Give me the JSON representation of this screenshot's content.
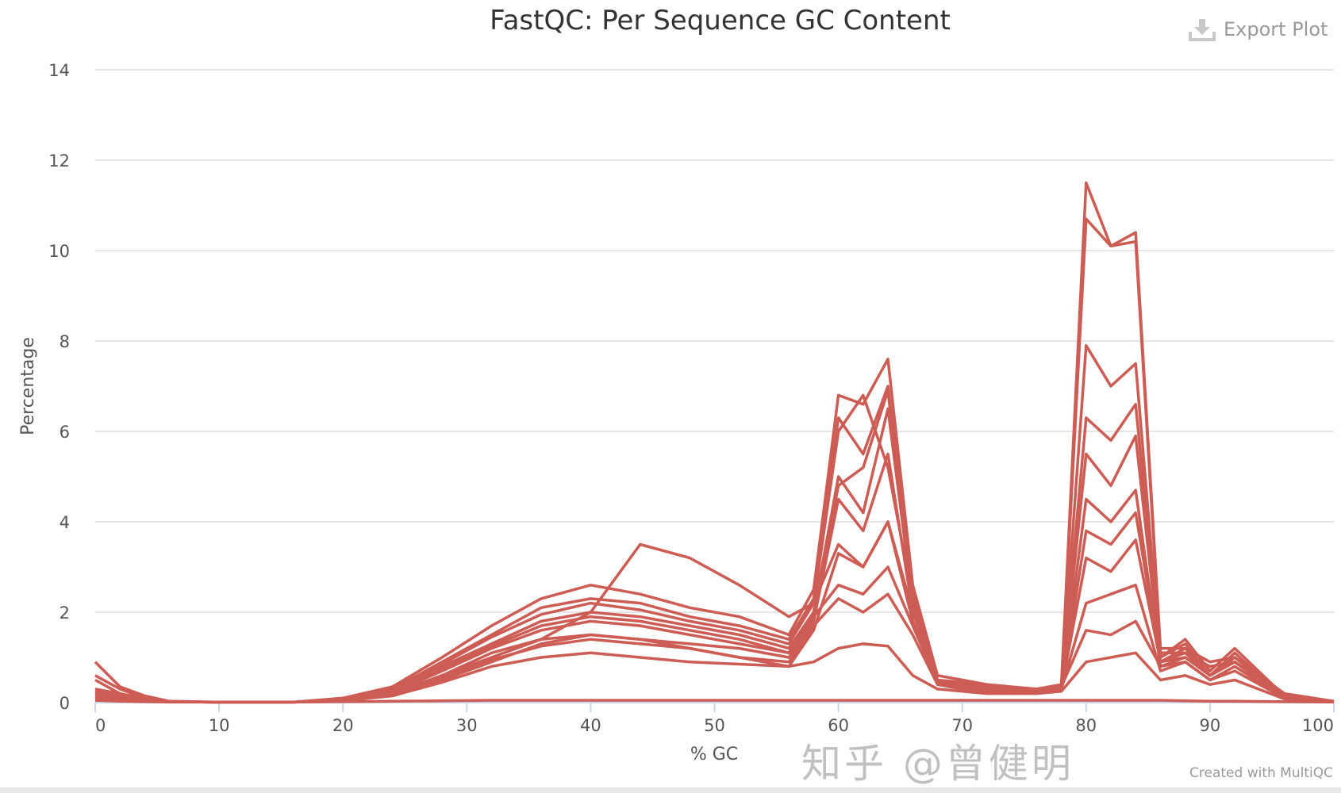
{
  "export_label": "Export Plot",
  "credit": "Created with MultiQC",
  "watermark": "知乎 @曾健明",
  "chart_data": {
    "type": "line",
    "title": "FastQC: Per Sequence GC Content",
    "xlabel": "% GC",
    "ylabel": "Percentage",
    "xlim": [
      0,
      100
    ],
    "ylim": [
      0,
      14
    ],
    "xticks": [
      0,
      10,
      20,
      30,
      40,
      50,
      60,
      70,
      80,
      90,
      100
    ],
    "yticks": [
      0,
      2,
      4,
      6,
      8,
      10,
      12,
      14
    ],
    "grid": true,
    "legend": "none",
    "line_color": "#cd5c54",
    "x": [
      0,
      2,
      4,
      6,
      10,
      16,
      20,
      24,
      28,
      32,
      36,
      40,
      44,
      48,
      52,
      56,
      58,
      60,
      62,
      64,
      66,
      68,
      70,
      72,
      76,
      78,
      80,
      82,
      84,
      86,
      88,
      90,
      92,
      96,
      100
    ],
    "series": [
      {
        "values": [
          0.9,
          0.35,
          0.15,
          0.03,
          0.01,
          0.01,
          0.1,
          0.35,
          1.0,
          1.7,
          2.3,
          2.6,
          2.4,
          2.1,
          1.9,
          1.5,
          2.5,
          6.8,
          6.6,
          7.6,
          2.6,
          0.6,
          0.5,
          0.4,
          0.3,
          0.4,
          11.5,
          10.1,
          10.4,
          1.2,
          1.2,
          0.9,
          1.0,
          0.2,
          0.03
        ]
      },
      {
        "values": [
          0.6,
          0.3,
          0.1,
          0.02,
          0.01,
          0.01,
          0.08,
          0.3,
          0.9,
          1.5,
          2.1,
          2.3,
          2.2,
          1.9,
          1.7,
          1.4,
          2.3,
          6.3,
          5.5,
          7.0,
          2.4,
          0.5,
          0.45,
          0.35,
          0.3,
          0.35,
          10.7,
          10.1,
          10.2,
          1.1,
          1.1,
          0.8,
          0.9,
          0.15,
          0.02
        ]
      },
      {
        "values": [
          0.3,
          0.2,
          0.08,
          0.02,
          0.01,
          0.01,
          0.07,
          0.25,
          0.8,
          1.3,
          1.8,
          2.0,
          1.9,
          1.7,
          1.5,
          1.2,
          2.0,
          5.0,
          4.2,
          6.5,
          2.2,
          0.5,
          0.4,
          0.3,
          0.3,
          0.3,
          7.9,
          7.0,
          7.5,
          1.0,
          1.4,
          0.7,
          1.2,
          0.15,
          0.02
        ]
      },
      {
        "values": [
          0.5,
          0.2,
          0.08,
          0.02,
          0.01,
          0.01,
          0.06,
          0.2,
          0.6,
          1.1,
          1.4,
          2.0,
          3.5,
          3.2,
          2.6,
          1.9,
          2.2,
          3.5,
          3.0,
          4.0,
          2.0,
          0.5,
          0.4,
          0.3,
          0.3,
          0.3,
          6.3,
          5.8,
          6.6,
          1.0,
          1.3,
          0.6,
          1.1,
          0.1,
          0.02
        ]
      },
      {
        "values": [
          0.2,
          0.1,
          0.05,
          0.02,
          0.01,
          0.01,
          0.05,
          0.2,
          0.6,
          1.0,
          1.4,
          1.5,
          1.4,
          1.3,
          1.2,
          1.0,
          1.8,
          4.5,
          3.8,
          5.5,
          2.0,
          0.45,
          0.35,
          0.3,
          0.3,
          0.3,
          5.5,
          4.8,
          5.9,
          0.9,
          1.0,
          0.6,
          0.9,
          0.1,
          0.02
        ]
      },
      {
        "values": [
          0.1,
          0.05,
          0.03,
          0.02,
          0.01,
          0.01,
          0.05,
          0.2,
          0.5,
          0.9,
          1.3,
          1.5,
          1.4,
          1.2,
          1.0,
          0.8,
          1.6,
          3.3,
          3.0,
          4.0,
          1.8,
          0.4,
          0.3,
          0.25,
          0.25,
          0.3,
          4.5,
          4.0,
          4.7,
          0.8,
          0.9,
          0.5,
          0.8,
          0.1,
          0.02
        ]
      },
      {
        "values": [
          0.2,
          0.1,
          0.05,
          0.02,
          0.01,
          0.01,
          0.06,
          0.22,
          0.7,
          1.2,
          1.6,
          1.8,
          1.7,
          1.5,
          1.3,
          1.1,
          1.9,
          2.6,
          2.4,
          3.0,
          1.7,
          0.45,
          0.35,
          0.3,
          0.3,
          0.3,
          3.2,
          2.9,
          3.6,
          0.9,
          1.1,
          0.6,
          0.9,
          0.1,
          0.02
        ]
      },
      {
        "values": [
          0.15,
          0.08,
          0.04,
          0.02,
          0.01,
          0.01,
          0.05,
          0.2,
          0.55,
          0.95,
          1.25,
          1.4,
          1.3,
          1.2,
          1.0,
          0.9,
          1.7,
          2.3,
          2.0,
          2.4,
          1.5,
          0.4,
          0.3,
          0.25,
          0.25,
          0.3,
          2.2,
          2.4,
          2.6,
          0.7,
          0.9,
          0.5,
          0.7,
          0.1,
          0.02
        ]
      },
      {
        "values": [
          0.1,
          0.05,
          0.03,
          0.02,
          0.01,
          0.01,
          0.04,
          0.15,
          0.45,
          0.8,
          1.0,
          1.1,
          1.0,
          0.9,
          0.85,
          0.8,
          0.9,
          1.2,
          1.3,
          1.25,
          0.6,
          0.3,
          0.25,
          0.2,
          0.2,
          0.25,
          0.9,
          1.0,
          1.1,
          0.5,
          0.6,
          0.4,
          0.5,
          0.08,
          0.02
        ]
      },
      {
        "values": [
          0.05,
          0.03,
          0.02,
          0.01,
          0.01,
          0.01,
          0.02,
          0.03,
          0.04,
          0.05,
          0.05,
          0.05,
          0.05,
          0.05,
          0.05,
          0.05,
          0.05,
          0.05,
          0.05,
          0.05,
          0.05,
          0.05,
          0.05,
          0.05,
          0.05,
          0.05,
          0.05,
          0.05,
          0.05,
          0.05,
          0.04,
          0.03,
          0.03,
          0.02,
          0.01
        ]
      },
      {
        "values": [
          0.3,
          0.15,
          0.06,
          0.02,
          0.01,
          0.01,
          0.07,
          0.28,
          0.85,
          1.45,
          1.95,
          2.2,
          2.05,
          1.8,
          1.6,
          1.3,
          2.2,
          6.0,
          6.8,
          5.2,
          2.3,
          0.5,
          0.4,
          0.35,
          0.3,
          0.35,
          1.6,
          1.5,
          1.8,
          0.8,
          1.0,
          0.6,
          0.9,
          0.12,
          0.02
        ]
      },
      {
        "values": [
          0.25,
          0.12,
          0.05,
          0.02,
          0.01,
          0.01,
          0.06,
          0.24,
          0.75,
          1.25,
          1.7,
          1.9,
          1.8,
          1.6,
          1.4,
          1.1,
          2.0,
          4.8,
          5.2,
          6.9,
          2.1,
          0.45,
          0.4,
          0.3,
          0.3,
          0.3,
          3.8,
          3.5,
          4.2,
          0.9,
          1.2,
          0.6,
          1.0,
          0.12,
          0.02
        ]
      }
    ]
  }
}
